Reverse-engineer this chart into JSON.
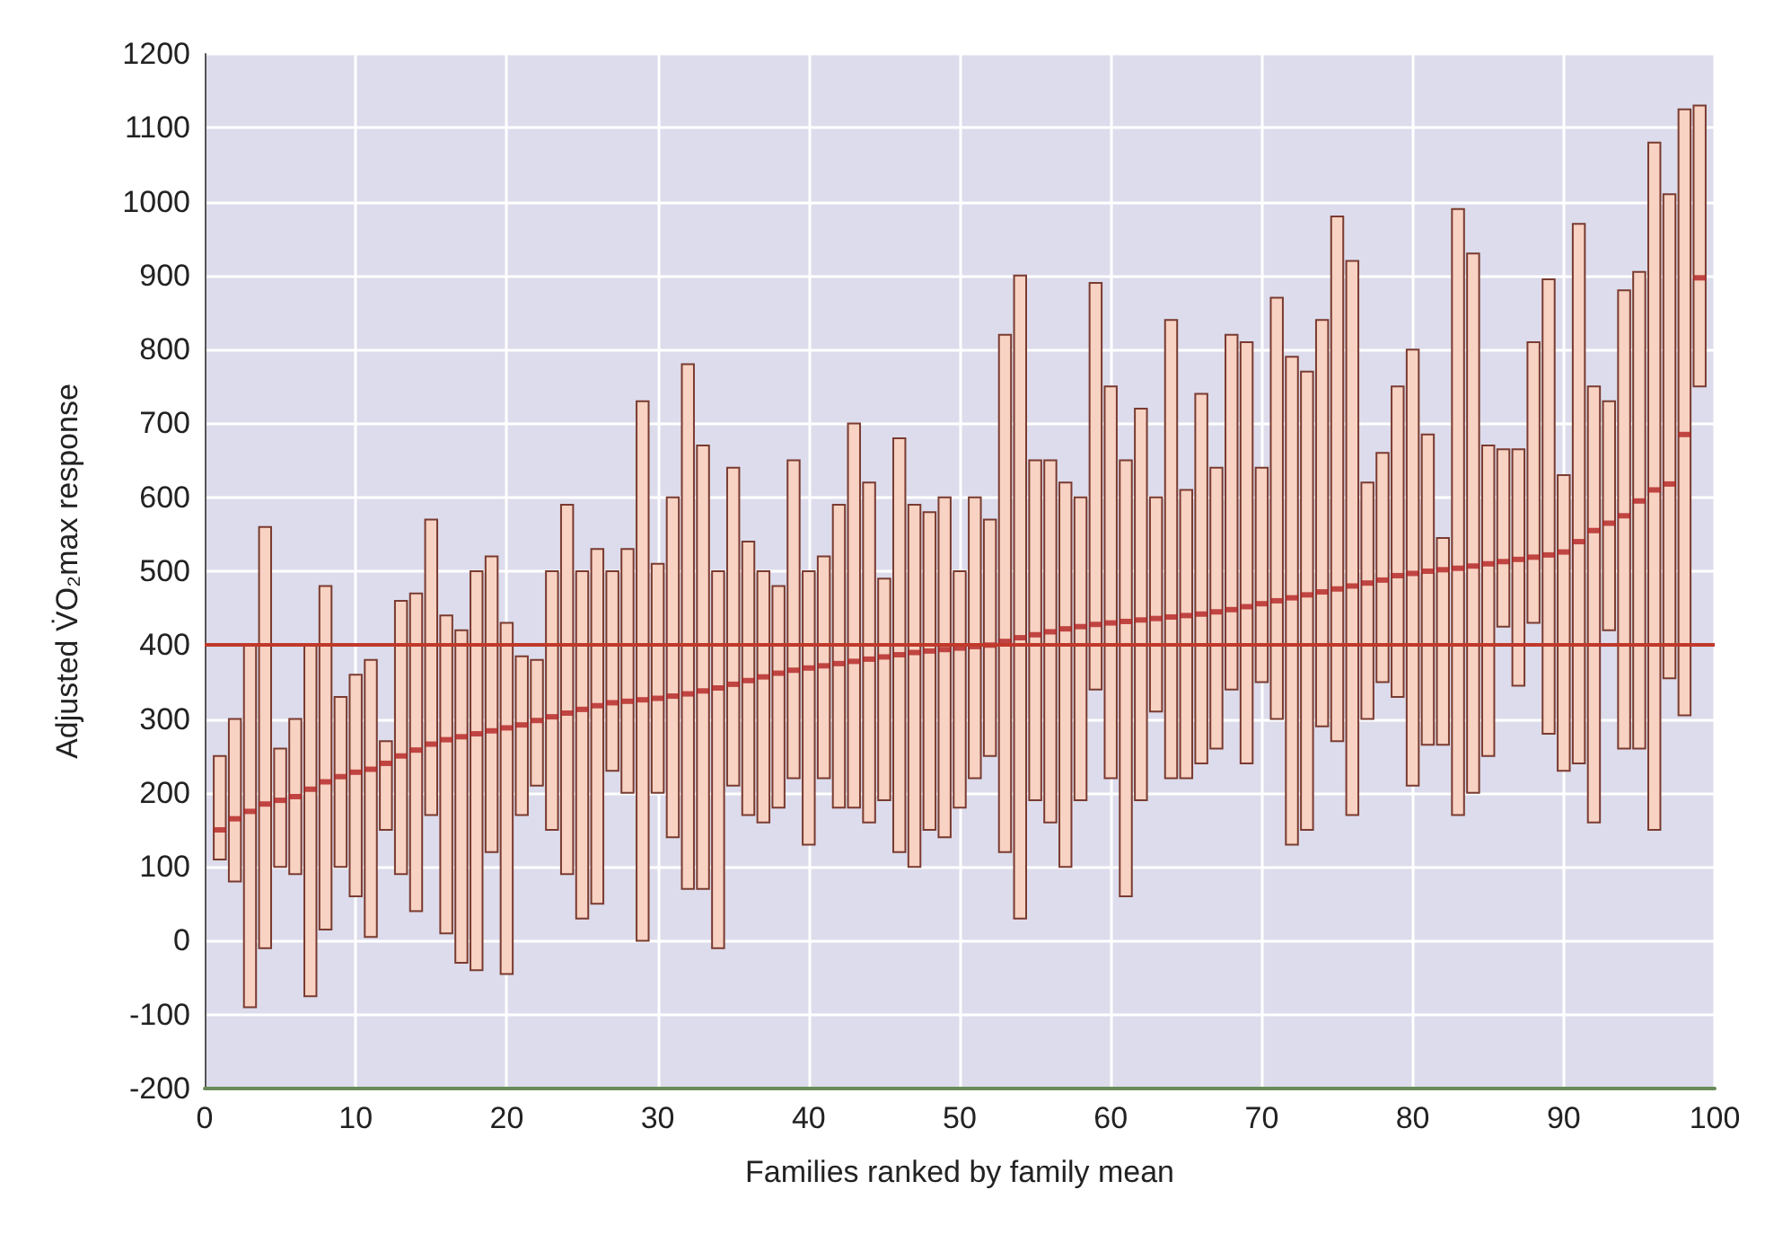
{
  "chart_data": {
    "type": "bar",
    "xlabel": "Families ranked by family mean",
    "ylabel": "Adjusted V̇O₂max response",
    "x": [
      1,
      2,
      3,
      4,
      5,
      6,
      7,
      8,
      9,
      10,
      11,
      12,
      13,
      14,
      15,
      16,
      17,
      18,
      19,
      20,
      21,
      22,
      23,
      24,
      25,
      26,
      27,
      28,
      29,
      30,
      31,
      32,
      33,
      34,
      35,
      36,
      37,
      38,
      39,
      40,
      41,
      42,
      43,
      44,
      45,
      46,
      47,
      48,
      49,
      50,
      51,
      52,
      53,
      54,
      55,
      56,
      57,
      58,
      59,
      60,
      61,
      62,
      63,
      64,
      65,
      66,
      67,
      68,
      69,
      70,
      71,
      72,
      73,
      74,
      75,
      76,
      77,
      78,
      79,
      80,
      81,
      82,
      83,
      84,
      85,
      86,
      87,
      88,
      89,
      90,
      91,
      92,
      93,
      94,
      95,
      96,
      97,
      98,
      99
    ],
    "series": [
      {
        "color": "#f8d2c2",
        "base": [
          110,
          80,
          -90,
          -10,
          100,
          90,
          -75,
          15,
          100,
          60,
          5,
          150,
          90,
          40,
          170,
          10,
          -30,
          -40,
          120,
          -45,
          170,
          210,
          150,
          90,
          30,
          50,
          230,
          200,
          0,
          200,
          140,
          70,
          70,
          -10,
          210,
          170,
          160,
          180,
          220,
          130,
          220,
          180,
          180,
          160,
          190,
          120,
          100,
          150,
          140,
          180,
          220,
          250,
          120,
          30,
          190,
          160,
          100,
          190,
          340,
          220,
          60,
          190,
          310,
          220,
          220,
          240,
          260,
          340,
          240,
          350,
          300,
          130,
          150,
          290,
          270,
          170,
          300,
          350,
          330,
          210,
          265,
          265,
          170,
          200,
          250,
          425,
          345,
          430,
          280,
          230,
          240,
          160,
          420,
          260,
          260,
          150,
          355,
          305,
          750
        ],
        "values": [
          140,
          220,
          490,
          570,
          160,
          210,
          475,
          465,
          230,
          300,
          375,
          120,
          370,
          430,
          400,
          430,
          450,
          540,
          400,
          475,
          215,
          170,
          350,
          500,
          470,
          480,
          270,
          330,
          730,
          310,
          460,
          710,
          600,
          510,
          430,
          370,
          340,
          300,
          430,
          370,
          300,
          410,
          520,
          460,
          300,
          560,
          490,
          430,
          460,
          320,
          380,
          320,
          700,
          870,
          460,
          490,
          520,
          410,
          550,
          530,
          590,
          530,
          290,
          620,
          390,
          500,
          380,
          480,
          570,
          290,
          570,
          660,
          620,
          550,
          710,
          750,
          320,
          310,
          420,
          590,
          420,
          280,
          820,
          730,
          420,
          240,
          320,
          380,
          615,
          400,
          730,
          590,
          310,
          620,
          645,
          930,
          655,
          820,
          380
        ]
      },
      {
        "type": "scatter",
        "color": "#b22222",
        "values": [
          150,
          165,
          175,
          185,
          190,
          195,
          205,
          215,
          222,
          228,
          232,
          240,
          250,
          258,
          266,
          272,
          276,
          280,
          284,
          288,
          292,
          298,
          303,
          308,
          313,
          318,
          322,
          324,
          326,
          328,
          331,
          334,
          338,
          342,
          347,
          352,
          357,
          362,
          366,
          369,
          372,
          375,
          378,
          381,
          384,
          387,
          390,
          392,
          394,
          396,
          398,
          400,
          405,
          410,
          414,
          418,
          422,
          425,
          428,
          430,
          432,
          434,
          436,
          438,
          440,
          442,
          445,
          448,
          452,
          456,
          460,
          464,
          468,
          472,
          476,
          480,
          484,
          488,
          494,
          497,
          500,
          502,
          504,
          507,
          510,
          513,
          516,
          519,
          522,
          526,
          540,
          555,
          565,
          575,
          595,
          610,
          618,
          685,
          897
        ]
      }
    ],
    "marker": "square",
    "ref_lines": [
      {
        "axis": "y",
        "value": 400,
        "color": "#c0392b"
      }
    ],
    "xlim": [
      0,
      100
    ],
    "xticks": [
      0,
      10,
      20,
      30,
      40,
      50,
      60,
      70,
      80,
      90,
      100
    ],
    "ylim": [
      -200,
      1200
    ],
    "yticks": [
      -200,
      -100,
      0,
      100,
      200,
      300,
      400,
      500,
      600,
      700,
      800,
      900,
      1000,
      1100,
      1200
    ],
    "grid": true
  }
}
